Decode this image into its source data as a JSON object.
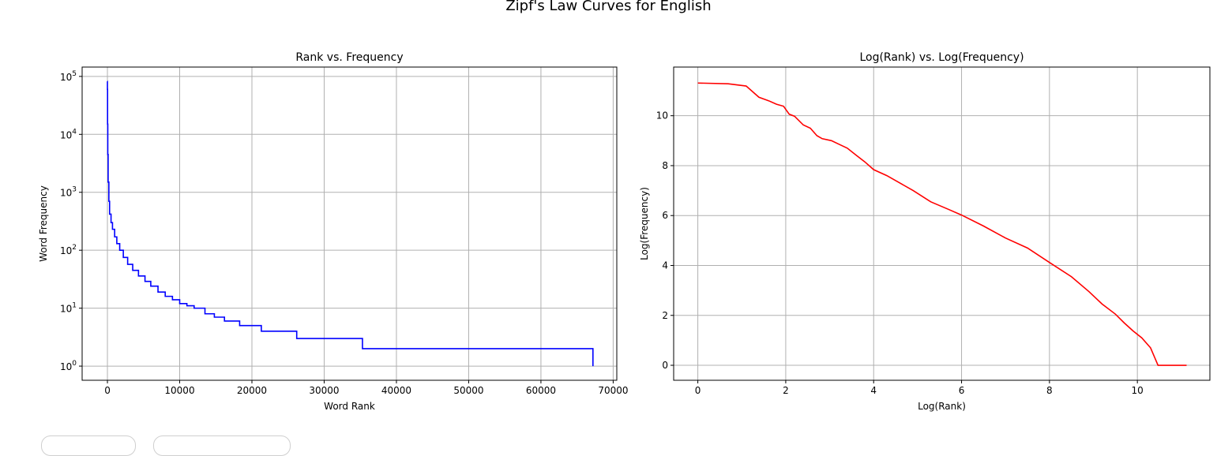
{
  "figure_title": "Zipf's Law Curves for English",
  "colors": {
    "left_series": "#0000ff",
    "right_series": "#ff0000",
    "grid": "#b0b0b0"
  },
  "chart_data": [
    {
      "type": "line",
      "title": "Rank vs. Frequency",
      "xlabel": "Word Rank",
      "ylabel": "Word Frequency",
      "yscale": "log",
      "xlim": [
        -3500,
        70500
      ],
      "ylim": [
        0.57,
        145000
      ],
      "grid": true,
      "xticks": [
        0,
        10000,
        20000,
        30000,
        40000,
        50000,
        60000,
        70000
      ],
      "xtick_labels": [
        "0",
        "10000",
        "20000",
        "30000",
        "40000",
        "50000",
        "60000",
        "70000"
      ],
      "yticks": [
        1,
        10,
        100,
        1000,
        10000,
        100000
      ],
      "ytick_labels": [
        {
          "base": "10",
          "exp": "0"
        },
        {
          "base": "10",
          "exp": "1"
        },
        {
          "base": "10",
          "exp": "2"
        },
        {
          "base": "10",
          "exp": "3"
        },
        {
          "base": "10",
          "exp": "4"
        },
        {
          "base": "10",
          "exp": "5"
        }
      ],
      "series": [
        {
          "color": "#0000ff",
          "x": [
            0,
            1,
            20,
            50,
            100,
            200,
            300,
            500,
            700,
            1000,
            1300,
            1700,
            2200,
            2800,
            3500,
            4300,
            5200,
            6000,
            7000,
            8000,
            9000,
            10000,
            11000,
            12000,
            13500,
            14800,
            16200,
            18300,
            21300,
            26200,
            35300,
            67200
          ],
          "y": [
            82000,
            60000,
            15000,
            4500,
            1500,
            700,
            420,
            300,
            230,
            170,
            130,
            100,
            75,
            57,
            45,
            36,
            29,
            24,
            19,
            16,
            14,
            12,
            11,
            10,
            8,
            7,
            6,
            5,
            4,
            3,
            2,
            1
          ],
          "step": "post"
        }
      ]
    },
    {
      "type": "line",
      "title": "Log(Rank) vs. Log(Frequency)",
      "xlabel": "Log(Rank)",
      "ylabel": "Log(Frequency)",
      "xlim": [
        -0.55,
        11.65
      ],
      "ylim": [
        -0.6,
        11.95
      ],
      "grid": true,
      "xticks": [
        0,
        2,
        4,
        6,
        8,
        10
      ],
      "xtick_labels": [
        "0",
        "2",
        "4",
        "6",
        "8",
        "10"
      ],
      "yticks": [
        0,
        2,
        4,
        6,
        8,
        10
      ],
      "ytick_labels": [
        "0",
        "2",
        "4",
        "6",
        "8",
        "10"
      ],
      "series": [
        {
          "color": "#ff0000",
          "x": [
            0,
            0.69,
            1.1,
            1.39,
            1.61,
            1.79,
            1.95,
            2.08,
            2.2,
            2.4,
            2.56,
            2.71,
            2.83,
            3.04,
            3.22,
            3.4,
            3.6,
            3.8,
            4.0,
            4.3,
            4.6,
            4.9,
            5.3,
            5.7,
            6.0,
            6.5,
            7.0,
            7.5,
            8.0,
            8.5,
            8.9,
            9.2,
            9.5,
            9.7,
            9.9,
            10.1,
            10.3,
            10.47,
            11.12
          ],
          "y": [
            11.31,
            11.28,
            11.19,
            10.74,
            10.6,
            10.46,
            10.38,
            10.06,
            9.98,
            9.63,
            9.5,
            9.2,
            9.08,
            9.0,
            8.85,
            8.7,
            8.42,
            8.15,
            7.84,
            7.6,
            7.3,
            7.0,
            6.55,
            6.25,
            6.02,
            5.58,
            5.1,
            4.7,
            4.12,
            3.55,
            2.95,
            2.45,
            2.05,
            1.7,
            1.38,
            1.1,
            0.7,
            0.0,
            0.0
          ]
        }
      ]
    }
  ]
}
